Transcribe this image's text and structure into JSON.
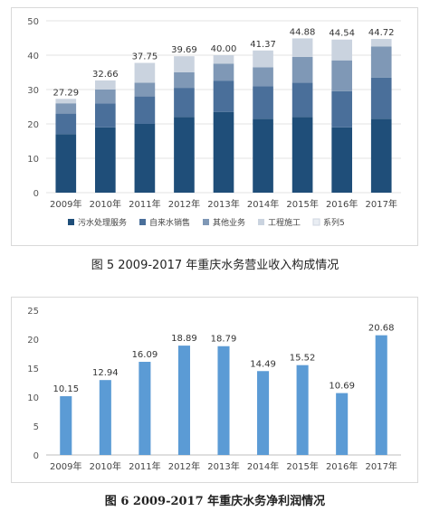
{
  "chart_data": [
    {
      "type": "bar",
      "stacked": true,
      "caption": "图 5 2009-2017 年重庆水务营业收入构成情况",
      "categories": [
        "2009年",
        "2010年",
        "2011年",
        "2012年",
        "2013年",
        "2014年",
        "2015年",
        "2016年",
        "2017年"
      ],
      "ylim": [
        0,
        50
      ],
      "yticks": [
        0,
        10,
        20,
        30,
        40,
        50
      ],
      "grid": true,
      "legend_position": "bottom",
      "totals": [
        27.29,
        32.66,
        37.75,
        39.69,
        40.0,
        41.37,
        44.88,
        44.54,
        44.72
      ],
      "series": [
        {
          "name": "污水处理服务",
          "color": "#1f4e79",
          "values": [
            17,
            19,
            20,
            22,
            23.5,
            21.5,
            22,
            19,
            21.5
          ]
        },
        {
          "name": "自来水销售",
          "color": "#4a6f9a",
          "values": [
            6,
            7,
            8,
            8.5,
            9,
            9.5,
            10,
            10.5,
            12
          ]
        },
        {
          "name": "其他业务",
          "color": "#7f98b6",
          "values": [
            3,
            4,
            4,
            4.5,
            5,
            5.5,
            7.5,
            9,
            9
          ]
        },
        {
          "name": "工程施工",
          "color": "#cad3df",
          "values": [
            1.29,
            2.66,
            5.75,
            4.69,
            2.5,
            4.87,
            5.38,
            6.04,
            2.22
          ]
        },
        {
          "name": "系列5",
          "color": "#e9edf3",
          "values": [
            0,
            0,
            0,
            0,
            0,
            0,
            0,
            0,
            0
          ]
        }
      ]
    },
    {
      "type": "bar",
      "caption": "图 6 2009-2017 年重庆水务净利润情况",
      "categories": [
        "2009年",
        "2010年",
        "2011年",
        "2012年",
        "2013年",
        "2014年",
        "2015年",
        "2016年",
        "2017年"
      ],
      "values": [
        10.15,
        12.94,
        16.09,
        18.89,
        18.79,
        14.49,
        15.52,
        10.69,
        20.68
      ],
      "labels": [
        "10.15",
        "12.94",
        "16.09",
        "18.89",
        "18.79",
        "14.49",
        "15.52",
        "10.69",
        "20.68"
      ],
      "color": "#5b9bd5",
      "ylim": [
        0,
        25
      ],
      "yticks": [
        0,
        5,
        10,
        15,
        20,
        25
      ],
      "grid": false
    }
  ]
}
